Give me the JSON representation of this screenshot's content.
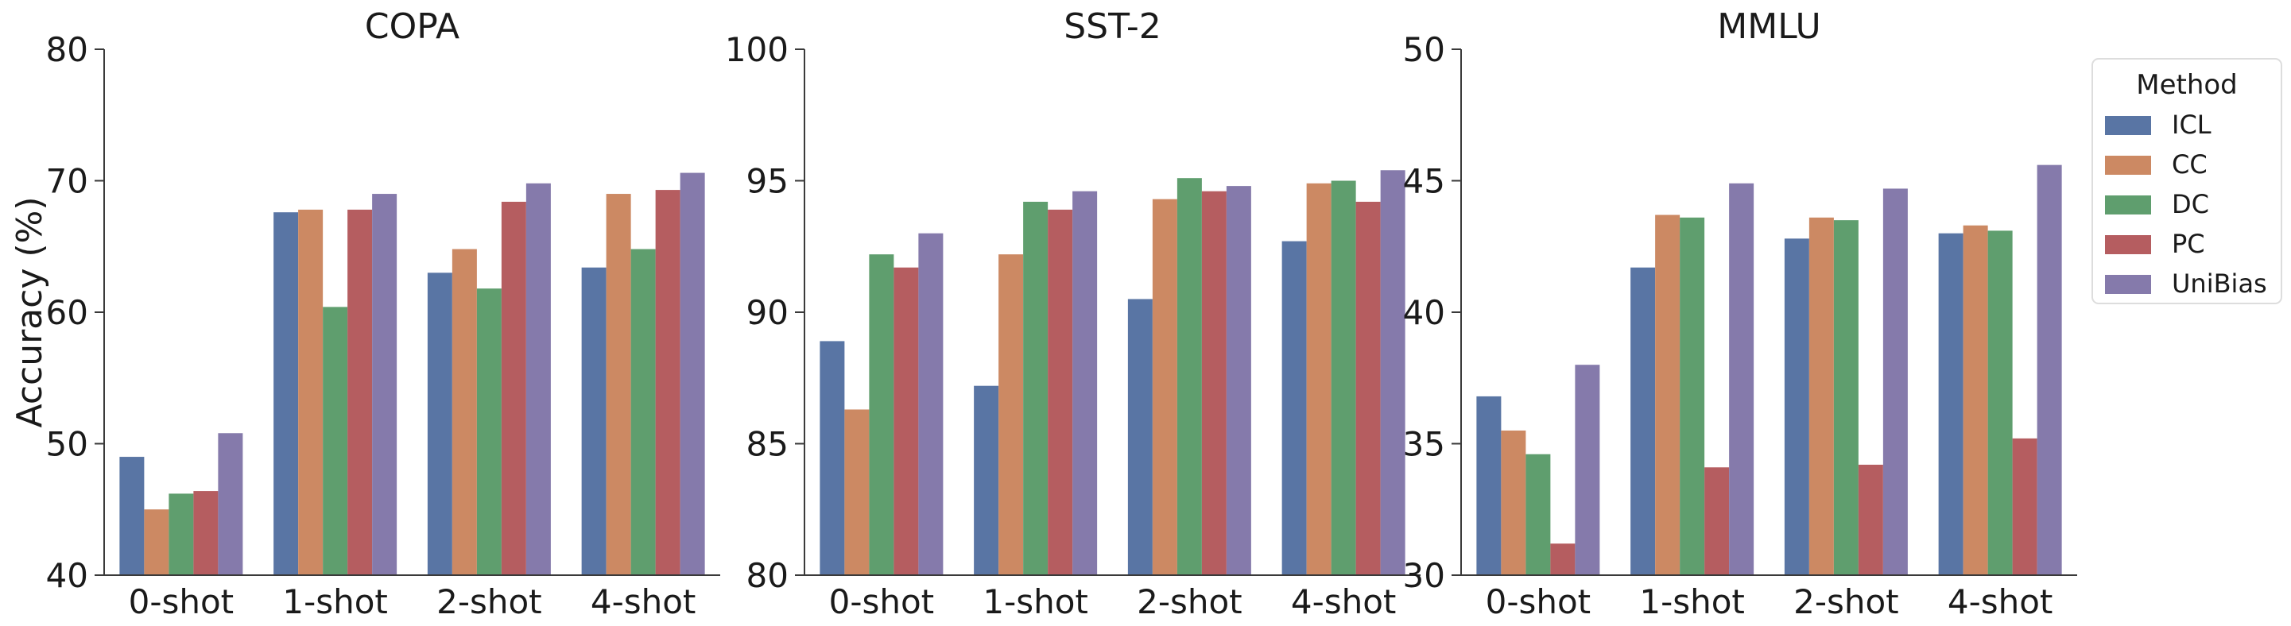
{
  "legend": {
    "title": "Method",
    "items": [
      {
        "name": "ICL",
        "color": "#5975a4"
      },
      {
        "name": "CC",
        "color": "#cc8963"
      },
      {
        "name": "DC",
        "color": "#5f9e6e"
      },
      {
        "name": "PC",
        "color": "#b55d60"
      },
      {
        "name": "UniBias",
        "color": "#857aab"
      }
    ]
  },
  "chart_data": [
    {
      "type": "bar",
      "title": "COPA",
      "ylabel": "Accuracy (%)",
      "ylim": [
        40,
        80
      ],
      "yticks": [
        40,
        50,
        60,
        70,
        80
      ],
      "categories": [
        "0-shot",
        "1-shot",
        "2-shot",
        "4-shot"
      ],
      "series": [
        {
          "name": "ICL",
          "values": [
            49.0,
            67.6,
            63.0,
            63.4
          ]
        },
        {
          "name": "CC",
          "values": [
            45.0,
            67.8,
            64.8,
            69.0
          ]
        },
        {
          "name": "DC",
          "values": [
            46.2,
            60.4,
            61.8,
            64.8
          ]
        },
        {
          "name": "PC",
          "values": [
            46.4,
            67.8,
            68.4,
            69.3
          ]
        },
        {
          "name": "UniBias",
          "values": [
            50.8,
            69.0,
            69.8,
            70.6
          ]
        }
      ]
    },
    {
      "type": "bar",
      "title": "SST-2",
      "ylabel": "",
      "ylim": [
        80,
        100
      ],
      "yticks": [
        80,
        85,
        90,
        95,
        100
      ],
      "categories": [
        "0-shot",
        "1-shot",
        "2-shot",
        "4-shot"
      ],
      "series": [
        {
          "name": "ICL",
          "values": [
            88.9,
            87.2,
            90.5,
            92.7
          ]
        },
        {
          "name": "CC",
          "values": [
            86.3,
            92.2,
            94.3,
            94.9
          ]
        },
        {
          "name": "DC",
          "values": [
            92.2,
            94.2,
            95.1,
            95.0
          ]
        },
        {
          "name": "PC",
          "values": [
            91.7,
            93.9,
            94.6,
            94.2
          ]
        },
        {
          "name": "UniBias",
          "values": [
            93.0,
            94.6,
            94.8,
            95.4
          ]
        }
      ]
    },
    {
      "type": "bar",
      "title": "MMLU",
      "ylabel": "",
      "ylim": [
        30,
        50
      ],
      "yticks": [
        30,
        35,
        40,
        45,
        50
      ],
      "categories": [
        "0-shot",
        "1-shot",
        "2-shot",
        "4-shot"
      ],
      "series": [
        {
          "name": "ICL",
          "values": [
            36.8,
            41.7,
            42.8,
            43.0
          ]
        },
        {
          "name": "CC",
          "values": [
            35.5,
            43.7,
            43.6,
            43.3
          ]
        },
        {
          "name": "DC",
          "values": [
            34.6,
            43.6,
            43.5,
            43.1
          ]
        },
        {
          "name": "PC",
          "values": [
            31.2,
            34.1,
            34.2,
            35.2
          ]
        },
        {
          "name": "UniBias",
          "values": [
            38.0,
            44.9,
            44.7,
            45.6
          ]
        }
      ]
    }
  ]
}
